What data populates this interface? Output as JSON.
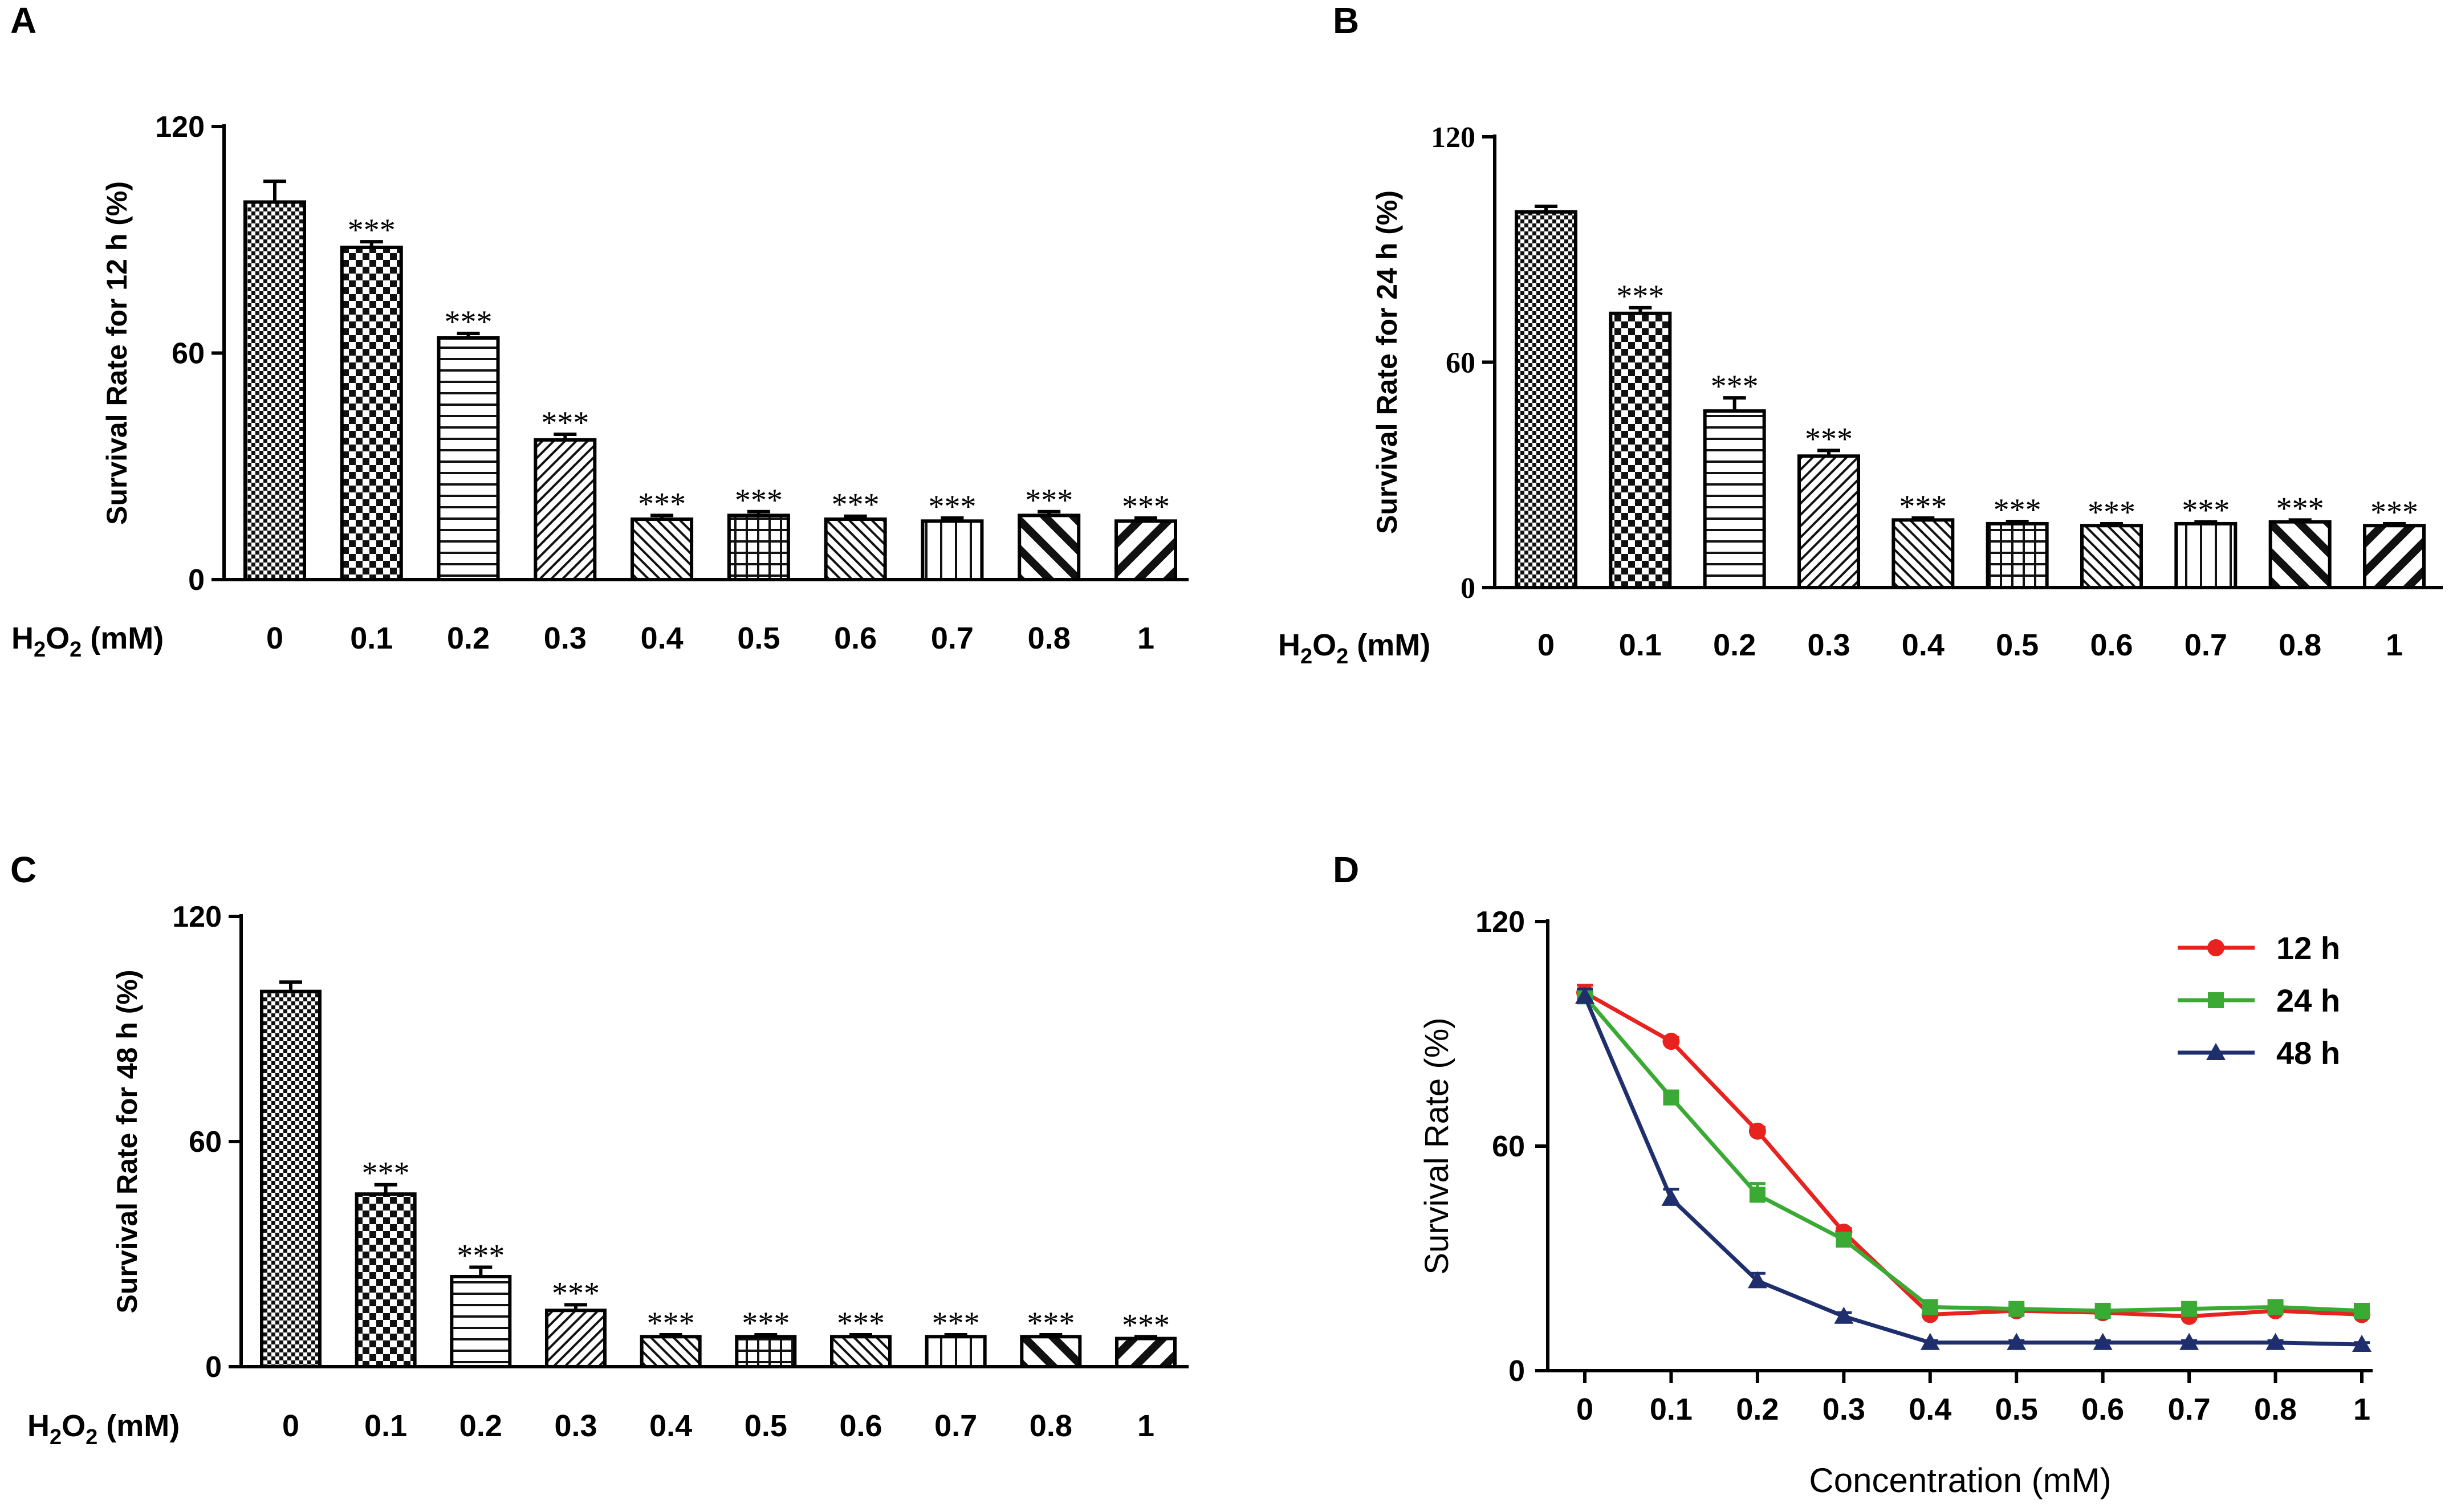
{
  "figure": {
    "panel_labels": [
      "A",
      "B",
      "C",
      "D"
    ]
  },
  "chart_data": [
    {
      "panel": "A",
      "type": "bar",
      "ylabel": "Survival Rate for 12 h (%)",
      "xlabel_prefix": "H",
      "xlabel_sub1": "2",
      "xlabel_mid": "O",
      "xlabel_sub2": "2",
      "xlabel_suffix": " (mM)",
      "categories": [
        "0",
        "0.1",
        "0.2",
        "0.3",
        "0.4",
        "0.5",
        "0.6",
        "0.7",
        "0.8",
        "1"
      ],
      "values": [
        100,
        88,
        64,
        37,
        16,
        17,
        16,
        15.5,
        17,
        15.5
      ],
      "errors": [
        5.5,
        1.5,
        1.2,
        1.5,
        1,
        1,
        0.8,
        0.8,
        1,
        0.8
      ],
      "patterns": [
        "fine-check",
        "checker",
        "hlines",
        "diag",
        "diag-back",
        "grid",
        "diag-back",
        "vlines",
        "bold-back",
        "bold-fwd"
      ],
      "significance": [
        "",
        "***",
        "***",
        "***",
        "***",
        "***",
        "***",
        "***",
        "***",
        "***"
      ],
      "ylim": [
        0,
        120
      ],
      "yticks": [
        0,
        60,
        120
      ]
    },
    {
      "panel": "B",
      "type": "bar",
      "ylabel": "Survival Rate for 24 h (%)",
      "xlabel_prefix": "H",
      "xlabel_sub1": "2",
      "xlabel_mid": "O",
      "xlabel_sub2": "2",
      "xlabel_suffix": " (mM)",
      "categories": [
        "0",
        "0.1",
        "0.2",
        "0.3",
        "0.4",
        "0.5",
        "0.6",
        "0.7",
        "0.8",
        "1"
      ],
      "values": [
        100,
        73,
        47,
        35,
        18,
        17,
        16.5,
        17,
        17.5,
        16.5
      ],
      "errors": [
        1.5,
        1.5,
        3.5,
        1.5,
        0.5,
        0.6,
        0.5,
        0.5,
        0.5,
        0.5
      ],
      "patterns": [
        "fine-check",
        "checker",
        "hlines",
        "diag",
        "diag-back",
        "grid",
        "diag-back",
        "vlines",
        "bold-back",
        "bold-fwd"
      ],
      "significance": [
        "",
        "***",
        "***",
        "***",
        "***",
        "***",
        "***",
        "***",
        "***",
        "***"
      ],
      "ylim": [
        0,
        120
      ],
      "yticks": [
        0,
        60,
        120
      ]
    },
    {
      "panel": "C",
      "type": "bar",
      "ylabel": "Survival Rate for 48 h (%)",
      "xlabel_prefix": "H",
      "xlabel_sub1": "2",
      "xlabel_mid": "O",
      "xlabel_sub2": "2",
      "xlabel_suffix": " (mM)",
      "categories": [
        "0",
        "0.1",
        "0.2",
        "0.3",
        "0.4",
        "0.5",
        "0.6",
        "0.7",
        "0.8",
        "1"
      ],
      "values": [
        100,
        46,
        24,
        15,
        8,
        8,
        8,
        8,
        8,
        7.5
      ],
      "errors": [
        2.5,
        2.5,
        2.5,
        1.5,
        0.5,
        0.5,
        0.5,
        0.5,
        0.5,
        0.5
      ],
      "patterns": [
        "fine-check",
        "checker",
        "hlines",
        "diag",
        "diag-back",
        "grid",
        "diag-back",
        "vlines",
        "bold-back",
        "bold-fwd"
      ],
      "significance": [
        "",
        "***",
        "***",
        "***",
        "***",
        "***",
        "***",
        "***",
        "***",
        "***"
      ],
      "ylim": [
        0,
        120
      ],
      "yticks": [
        0,
        60,
        120
      ]
    },
    {
      "panel": "D",
      "type": "line",
      "ylabel": "Survival Rate (%)",
      "xlabel": "Concentration (mM)",
      "categories": [
        "0",
        "0.1",
        "0.2",
        "0.3",
        "0.4",
        "0.5",
        "0.6",
        "0.7",
        "0.8",
        "1"
      ],
      "series": [
        {
          "name": "12 h",
          "color": "#e8221f",
          "marker": "circle",
          "values": [
            101,
            88,
            64,
            37,
            15,
            16,
            15.5,
            14.5,
            16,
            15
          ],
          "errors": [
            2,
            1,
            1,
            1,
            0.5,
            0.5,
            0.5,
            0.5,
            0.5,
            0.5
          ]
        },
        {
          "name": "24 h",
          "color": "#3aaa35",
          "marker": "square",
          "values": [
            100,
            73,
            47,
            35,
            17,
            16.5,
            16,
            16.5,
            17,
            16
          ],
          "errors": [
            1.5,
            1.5,
            3,
            1.5,
            0.5,
            0.5,
            0.5,
            0.5,
            0.5,
            0.5
          ]
        },
        {
          "name": "48 h",
          "color": "#1f2f6e",
          "marker": "triangle",
          "values": [
            100,
            46,
            24,
            14.5,
            7.5,
            7.5,
            7.5,
            7.5,
            7.5,
            7
          ],
          "errors": [
            2,
            2.5,
            2,
            1,
            0.5,
            0.5,
            0.5,
            0.5,
            0.5,
            0.5
          ]
        }
      ],
      "ylim": [
        0,
        120
      ],
      "yticks": [
        0,
        60,
        120
      ],
      "legend_position": "top-right"
    }
  ]
}
